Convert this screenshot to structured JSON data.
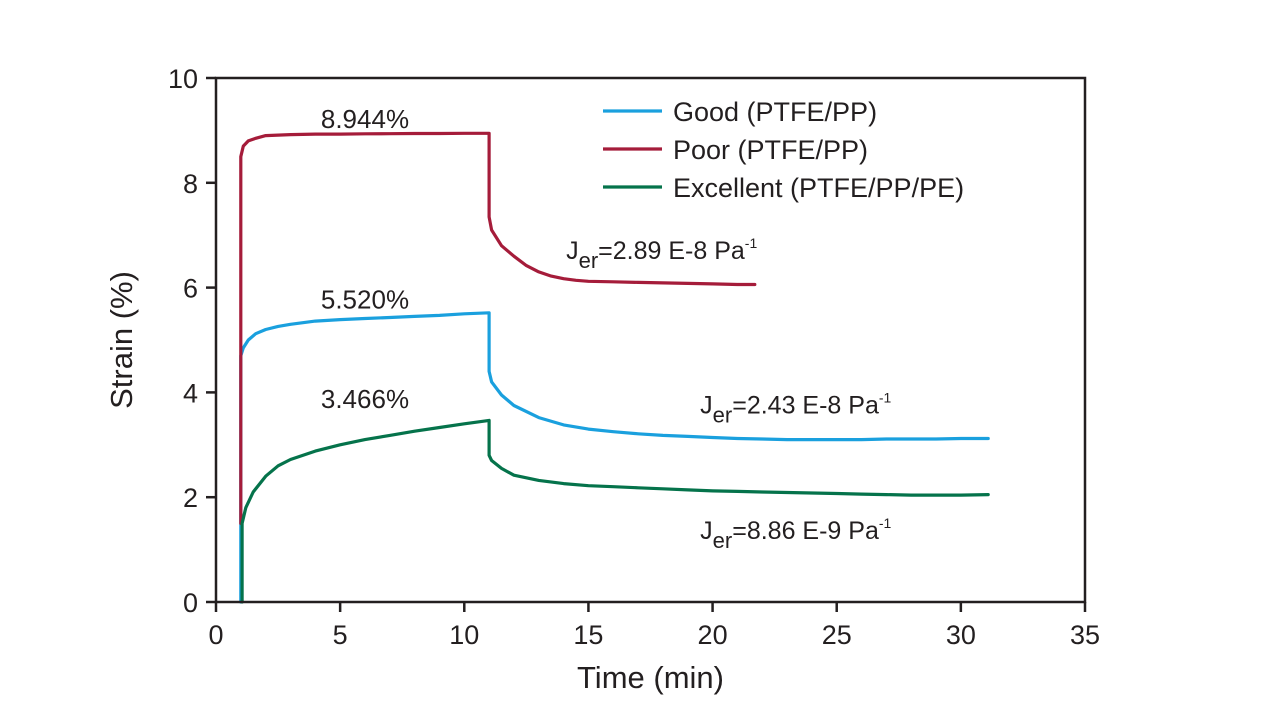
{
  "chart_data": {
    "type": "line",
    "title": "",
    "xlabel": "Time (min)",
    "ylabel": "Strain (%)",
    "xlim": [
      0,
      35
    ],
    "ylim": [
      0,
      10
    ],
    "x_ticks": [
      "0",
      "5",
      "10",
      "15",
      "20",
      "25",
      "30",
      "35"
    ],
    "y_ticks": [
      "0",
      "2",
      "4",
      "6",
      "8",
      "10"
    ],
    "grid": false,
    "legend_position": "top-right",
    "series": [
      {
        "name": "Good (PTFE/PP)",
        "color": "#1aa0de",
        "x": [
          1.0,
          1.0,
          1.1,
          1.3,
          1.6,
          2.0,
          2.5,
          3.0,
          4.0,
          5.0,
          6.0,
          7.0,
          8.0,
          9.0,
          10.0,
          11.0,
          11.0,
          11.1,
          11.5,
          12.0,
          13.0,
          14.0,
          15.0,
          16.0,
          17.0,
          18.0,
          19.0,
          20.0,
          21.0,
          22.0,
          23.0,
          24.0,
          25.0,
          26.0,
          27.0,
          28.0,
          29.0,
          30.0,
          31.1
        ],
        "y": [
          0.0,
          4.7,
          4.85,
          5.0,
          5.12,
          5.2,
          5.26,
          5.3,
          5.36,
          5.39,
          5.41,
          5.43,
          5.45,
          5.47,
          5.5,
          5.52,
          4.4,
          4.2,
          3.95,
          3.75,
          3.52,
          3.38,
          3.3,
          3.25,
          3.21,
          3.18,
          3.16,
          3.14,
          3.12,
          3.11,
          3.1,
          3.1,
          3.1,
          3.1,
          3.11,
          3.11,
          3.11,
          3.12,
          3.12
        ]
      },
      {
        "name": "Poor (PTFE/PP)",
        "color": "#a51c3a",
        "x": [
          1.0,
          1.0,
          1.1,
          1.3,
          1.6,
          2.0,
          2.5,
          3.0,
          4.0,
          5.0,
          6.0,
          7.0,
          8.0,
          9.0,
          10.0,
          11.0,
          11.0,
          11.1,
          11.5,
          12.0,
          12.5,
          13.0,
          13.5,
          14.0,
          14.5,
          15.0,
          16.0,
          17.0,
          18.0,
          19.0,
          20.0,
          21.0,
          21.7
        ],
        "y": [
          1.5,
          8.5,
          8.7,
          8.8,
          8.85,
          8.9,
          8.91,
          8.92,
          8.93,
          8.93,
          8.935,
          8.937,
          8.94,
          8.94,
          8.944,
          8.944,
          7.35,
          7.1,
          6.8,
          6.6,
          6.42,
          6.3,
          6.22,
          6.17,
          6.14,
          6.12,
          6.11,
          6.1,
          6.09,
          6.08,
          6.07,
          6.06,
          6.06
        ]
      },
      {
        "name": "Excellent (PTFE/PP/PE)",
        "color": "#05734b",
        "x": [
          1.05,
          1.05,
          1.2,
          1.5,
          2.0,
          2.5,
          3.0,
          4.0,
          5.0,
          6.0,
          7.0,
          8.0,
          9.0,
          10.0,
          11.0,
          11.0,
          11.1,
          11.5,
          12.0,
          13.0,
          14.0,
          15.0,
          16.0,
          17.0,
          18.0,
          19.0,
          20.0,
          21.0,
          22.0,
          23.0,
          24.0,
          25.0,
          26.0,
          27.0,
          28.0,
          29.0,
          30.0,
          31.1
        ],
        "y": [
          0.0,
          1.5,
          1.8,
          2.1,
          2.4,
          2.6,
          2.72,
          2.88,
          3.0,
          3.1,
          3.18,
          3.26,
          3.33,
          3.4,
          3.466,
          2.8,
          2.7,
          2.55,
          2.42,
          2.32,
          2.26,
          2.22,
          2.2,
          2.18,
          2.16,
          2.14,
          2.12,
          2.11,
          2.1,
          2.09,
          2.08,
          2.07,
          2.06,
          2.05,
          2.04,
          2.04,
          2.04,
          2.05
        ]
      }
    ],
    "annotations": {
      "poor_peak": {
        "text": "8.944%",
        "x": 6.0,
        "y": 9.05
      },
      "good_peak": {
        "text": "5.520%",
        "x": 6.0,
        "y": 5.6
      },
      "excellent_peak": {
        "text": "3.466%",
        "x": 6.0,
        "y": 3.7
      },
      "poor_jer": {
        "prefix": "J",
        "sub": "er",
        "main": "=2.89 E-8 Pa",
        "sup": "-1",
        "x": 14.1,
        "y": 6.55
      },
      "good_jer": {
        "prefix": "J",
        "sub": "er",
        "main": "=2.43 E-8 Pa",
        "sup": "-1",
        "x": 19.5,
        "y": 3.6
      },
      "excellent_jer": {
        "prefix": "J",
        "sub": "er",
        "main": "=8.86 E-9 Pa",
        "sup": "-1",
        "x": 19.5,
        "y": 1.2
      }
    }
  }
}
